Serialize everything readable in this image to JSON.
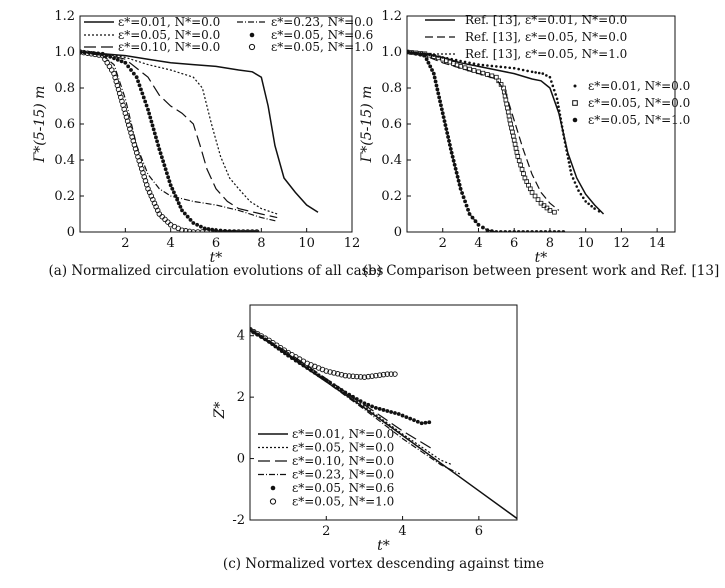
{
  "chart_data": [
    {
      "panel": "a",
      "type": "line",
      "caption": "(a) Normalized circulation evolutions of all cases",
      "xlabel": "t*",
      "ylabel": "Γ*(5-15) m",
      "xlim": [
        0,
        12
      ],
      "ylim": [
        0,
        1.2
      ],
      "xticks": [
        "2",
        "4",
        "6",
        "8",
        "10",
        "12"
      ],
      "yticks": [
        "0",
        "0.2",
        "0.4",
        "0.6",
        "0.8",
        "1.0",
        "1.2"
      ],
      "legend_position": "top",
      "series": [
        {
          "name": "ε*=0.01, N*=0.0",
          "style": "solid",
          "x": [
            0,
            1,
            2,
            3,
            4,
            5,
            6,
            7,
            7.6,
            8.0,
            8.3,
            8.6,
            9.0,
            9.5,
            10.0,
            10.5
          ],
          "y": [
            1.0,
            0.99,
            0.98,
            0.96,
            0.94,
            0.93,
            0.92,
            0.9,
            0.89,
            0.86,
            0.7,
            0.48,
            0.3,
            0.22,
            0.15,
            0.11
          ]
        },
        {
          "name": "ε*=0.05, N*=0.0",
          "style": "dotted",
          "x": [
            0,
            1,
            2,
            3,
            4,
            5,
            5.4,
            5.8,
            6.2,
            6.6,
            7.0,
            7.5,
            8.0,
            8.7
          ],
          "y": [
            1.0,
            0.99,
            0.97,
            0.93,
            0.9,
            0.86,
            0.8,
            0.6,
            0.42,
            0.3,
            0.24,
            0.17,
            0.13,
            0.1
          ]
        },
        {
          "name": "ε*=0.10, N*=0.0",
          "style": "long-dash",
          "x": [
            0,
            1,
            2,
            3,
            3.5,
            4,
            4.5,
            5,
            5.3,
            5.6,
            6,
            6.5,
            7,
            8,
            8.7
          ],
          "y": [
            1.0,
            0.99,
            0.96,
            0.86,
            0.76,
            0.7,
            0.66,
            0.6,
            0.48,
            0.35,
            0.24,
            0.17,
            0.13,
            0.1,
            0.08
          ]
        },
        {
          "name": "ε*=0.23, N*=0.0",
          "style": "dash-dot",
          "x": [
            0,
            1,
            1.5,
            2,
            2.5,
            3,
            3.5,
            4,
            5,
            6,
            7,
            8,
            8.7
          ],
          "y": [
            1.0,
            0.98,
            0.93,
            0.74,
            0.48,
            0.32,
            0.24,
            0.2,
            0.17,
            0.15,
            0.12,
            0.08,
            0.06
          ]
        },
        {
          "name": "ε*=0.05, N*=0.6",
          "style": "filled-dots",
          "x": [
            0,
            1,
            2,
            2.5,
            3,
            3.5,
            4,
            4.5,
            5,
            5.5,
            6,
            7,
            8
          ],
          "y": [
            1.0,
            0.99,
            0.94,
            0.86,
            0.68,
            0.46,
            0.26,
            0.12,
            0.05,
            0.02,
            0.01,
            0,
            0
          ]
        },
        {
          "name": "ε*=0.05, N*=1.0",
          "style": "open-circles",
          "x": [
            0,
            0.5,
            1,
            1.5,
            2,
            2.5,
            3,
            3.5,
            4,
            4.5,
            5,
            6,
            7,
            8
          ],
          "y": [
            1.0,
            0.99,
            0.98,
            0.88,
            0.66,
            0.44,
            0.24,
            0.1,
            0.04,
            0.01,
            0,
            0,
            0,
            0
          ]
        }
      ]
    },
    {
      "panel": "b",
      "type": "line",
      "caption": "(b) Comparison between present work and Ref. [13]",
      "xlabel": "t*",
      "ylabel": "Γ*(5-15) m",
      "xlim": [
        0,
        15
      ],
      "ylim": [
        0,
        1.2
      ],
      "xticks": [
        "2",
        "4",
        "6",
        "8",
        "10",
        "12",
        "14"
      ],
      "yticks": [
        "0",
        "0.2",
        "0.4",
        "0.6",
        "0.8",
        "1.0",
        "1.2"
      ],
      "legend_position": "top-right",
      "series": [
        {
          "name": "Ref. [13], ε*=0.01, N*=0.0",
          "style": "solid",
          "x": [
            0,
            1,
            2,
            3,
            4,
            5,
            6,
            7,
            7.5,
            8,
            8.5,
            9,
            9.5,
            10,
            10.5,
            11
          ],
          "y": [
            1.0,
            0.99,
            0.97,
            0.94,
            0.92,
            0.9,
            0.88,
            0.85,
            0.84,
            0.8,
            0.66,
            0.44,
            0.3,
            0.21,
            0.15,
            0.1
          ]
        },
        {
          "name": "Ref. [13], ε*=0.05, N*=0.0",
          "style": "dashed",
          "x": [
            0,
            1,
            2,
            3,
            4,
            5,
            5.5,
            6,
            6.5,
            7,
            7.5,
            8,
            8.5
          ],
          "y": [
            1.0,
            0.98,
            0.94,
            0.91,
            0.88,
            0.85,
            0.78,
            0.62,
            0.46,
            0.32,
            0.22,
            0.16,
            0.12
          ]
        },
        {
          "name": "Ref. [13], ε*=0.05, N*=1.0",
          "style": "dotted",
          "x": [
            0,
            0.5,
            1,
            1.5,
            2,
            2.5,
            3,
            3.5,
            4,
            4.5,
            5
          ],
          "y": [
            1.0,
            0.99,
            0.97,
            0.88,
            0.66,
            0.44,
            0.24,
            0.1,
            0.04,
            0.01,
            0
          ]
        },
        {
          "name": "ε*=0.01, N*=0.0",
          "style": "small-dots",
          "x": [
            0,
            1,
            2,
            3,
            4,
            5,
            6,
            7,
            7.6,
            8,
            8.4,
            8.8,
            9.2,
            9.6,
            10,
            10.5,
            11
          ],
          "y": [
            1.0,
            0.99,
            0.97,
            0.95,
            0.93,
            0.92,
            0.91,
            0.89,
            0.88,
            0.86,
            0.74,
            0.52,
            0.32,
            0.23,
            0.17,
            0.13,
            0.1
          ]
        },
        {
          "name": "ε*=0.05, N*=0.0",
          "style": "open-squares",
          "x": [
            0,
            1,
            2,
            3,
            4,
            5,
            5.4,
            5.8,
            6.2,
            6.6,
            7,
            7.5,
            8,
            8.5
          ],
          "y": [
            1.0,
            0.99,
            0.96,
            0.92,
            0.89,
            0.86,
            0.8,
            0.6,
            0.42,
            0.3,
            0.22,
            0.16,
            0.12,
            0.1
          ]
        },
        {
          "name": "ε*=0.05, N*=1.0",
          "style": "filled-dots",
          "x": [
            0,
            0.5,
            1,
            1.5,
            2,
            2.5,
            3,
            3.5,
            4,
            4.5,
            5,
            6,
            7,
            8,
            9
          ],
          "y": [
            1.0,
            0.99,
            0.98,
            0.88,
            0.66,
            0.44,
            0.24,
            0.1,
            0.04,
            0.01,
            0,
            0,
            0,
            0,
            0
          ]
        }
      ]
    },
    {
      "panel": "c",
      "type": "line",
      "caption": "(c) Normalized vortex descending against time",
      "xlabel": "t*",
      "ylabel": "Z*",
      "xlim": [
        0,
        7
      ],
      "ylim": [
        -2,
        5
      ],
      "xticks": [
        "2",
        "4",
        "6"
      ],
      "yticks": [
        "-2",
        "0",
        "2",
        "4"
      ],
      "legend_position": "bottom-left",
      "series": [
        {
          "name": "ε*=0.01, N*=0.0",
          "style": "solid",
          "x": [
            0,
            1,
            2,
            3,
            4,
            5,
            6,
            7
          ],
          "y": [
            4.2,
            3.35,
            2.5,
            1.65,
            0.75,
            -0.15,
            -1.05,
            -1.95
          ]
        },
        {
          "name": "ε*=0.05, N*=0.0",
          "style": "dotted",
          "x": [
            0,
            1,
            2,
            3,
            4,
            5,
            5.3
          ],
          "y": [
            4.2,
            3.4,
            2.55,
            1.7,
            0.8,
            -0.05,
            -0.2
          ]
        },
        {
          "name": "ε*=0.10, N*=0.0",
          "style": "long-dash",
          "x": [
            0,
            1,
            2,
            3,
            4,
            4.8
          ],
          "y": [
            4.2,
            3.45,
            2.6,
            1.75,
            0.9,
            0.3
          ]
        },
        {
          "name": "ε*=0.23, N*=0.0",
          "style": "dash-dot",
          "x": [
            0,
            1,
            2,
            3,
            4,
            5,
            5.5
          ],
          "y": [
            4.2,
            3.4,
            2.5,
            1.6,
            0.65,
            -0.2,
            -0.5
          ]
        },
        {
          "name": "ε*=0.05, N*=0.6",
          "style": "filled-dots",
          "x": [
            0,
            0.5,
            1,
            1.5,
            2,
            2.5,
            3,
            3.3,
            3.6,
            3.9,
            4.2,
            4.5,
            4.8
          ],
          "y": [
            4.2,
            3.8,
            3.35,
            2.95,
            2.55,
            2.15,
            1.8,
            1.65,
            1.55,
            1.45,
            1.3,
            1.15,
            1.2
          ]
        },
        {
          "name": "ε*=0.05, N*=1.0",
          "style": "open-circles",
          "x": [
            0,
            0.5,
            1,
            1.5,
            2,
            2.5,
            3,
            3.3,
            3.6,
            3.9
          ],
          "y": [
            4.2,
            3.85,
            3.45,
            3.1,
            2.85,
            2.7,
            2.65,
            2.7,
            2.75,
            2.75
          ]
        }
      ]
    }
  ]
}
